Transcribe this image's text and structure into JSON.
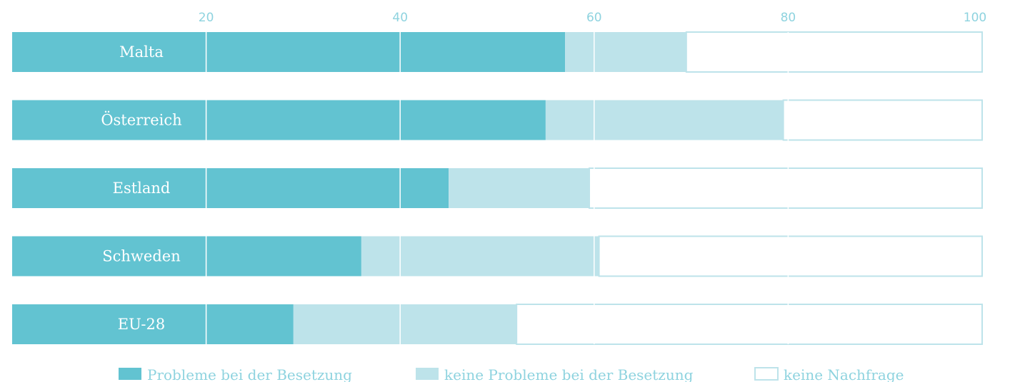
{
  "chart_data": {
    "type": "bar",
    "orientation": "horizontal",
    "stacked": true,
    "categories": [
      "Malta",
      "Österreich",
      "Estland",
      "Schweden",
      "EU-28"
    ],
    "series": [
      {
        "name": "Probleme bei der Besetzung",
        "values": [
          57,
          55,
          45,
          36,
          29
        ]
      },
      {
        "name": "keine Probleme bei der Besetzung",
        "values": [
          12.5,
          24.5,
          14.5,
          24.5,
          23
        ]
      },
      {
        "name": "keine Nachfrage",
        "values": [
          30.5,
          20.5,
          40.5,
          39.5,
          48
        ]
      }
    ],
    "x_ticks": [
      "20",
      "40",
      "60",
      "80",
      "100"
    ],
    "xlim": [
      0,
      100
    ],
    "grid": true,
    "legend_position": "bottom",
    "colors": [
      "#62c3d1",
      "#bde3ea",
      "#ffffff"
    ],
    "border_color": "#bde3ea"
  }
}
